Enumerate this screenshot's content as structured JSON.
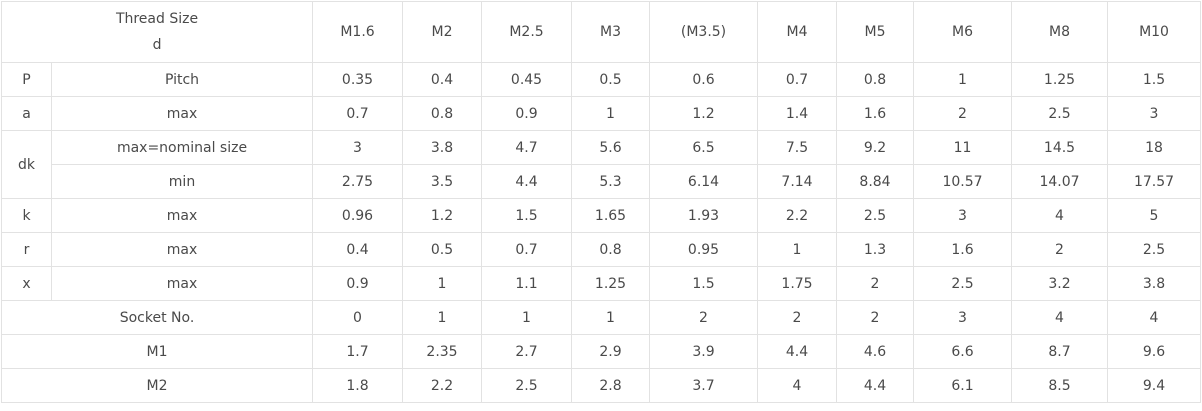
{
  "table": {
    "header": {
      "title_line1": "Thread Size",
      "title_line2": "d",
      "sizes": [
        "M1.6",
        "M2",
        "M2.5",
        "M3",
        "(M3.5)",
        "M4",
        "M5",
        "M6",
        "M8",
        "M10"
      ]
    },
    "rows": [
      {
        "symbol": "P",
        "label": "Pitch",
        "values": [
          "0.35",
          "0.4",
          "0.45",
          "0.5",
          "0.6",
          "0.7",
          "0.8",
          "1",
          "1.25",
          "1.5"
        ]
      },
      {
        "symbol": "a",
        "label": "max",
        "values": [
          "0.7",
          "0.8",
          "0.9",
          "1",
          "1.2",
          "1.4",
          "1.6",
          "2",
          "2.5",
          "3"
        ]
      },
      {
        "symbol": "dk",
        "label": "max=nominal size",
        "values": [
          "3",
          "3.8",
          "4.7",
          "5.6",
          "6.5",
          "7.5",
          "9.2",
          "11",
          "14.5",
          "18"
        ]
      },
      {
        "symbol": "",
        "label": "min",
        "values": [
          "2.75",
          "3.5",
          "4.4",
          "5.3",
          "6.14",
          "7.14",
          "8.84",
          "10.57",
          "14.07",
          "17.57"
        ]
      },
      {
        "symbol": "k",
        "label": "max",
        "values": [
          "0.96",
          "1.2",
          "1.5",
          "1.65",
          "1.93",
          "2.2",
          "2.5",
          "3",
          "4",
          "5"
        ]
      },
      {
        "symbol": "r",
        "label": "max",
        "values": [
          "0.4",
          "0.5",
          "0.7",
          "0.8",
          "0.95",
          "1",
          "1.3",
          "1.6",
          "2",
          "2.5"
        ]
      },
      {
        "symbol": "x",
        "label": "max",
        "values": [
          "0.9",
          "1",
          "1.1",
          "1.25",
          "1.5",
          "1.75",
          "2",
          "2.5",
          "3.2",
          "3.8"
        ]
      },
      {
        "symbol": "",
        "label": "Socket No.",
        "values": [
          "0",
          "1",
          "1",
          "1",
          "2",
          "2",
          "2",
          "3",
          "4",
          "4"
        ]
      },
      {
        "symbol": "",
        "label": "M1",
        "values": [
          "1.7",
          "2.35",
          "2.7",
          "2.9",
          "3.9",
          "4.4",
          "4.6",
          "6.6",
          "8.7",
          "9.6"
        ]
      },
      {
        "symbol": "",
        "label": "M2",
        "values": [
          "1.8",
          "2.2",
          "2.5",
          "2.8",
          "3.7",
          "4",
          "4.4",
          "6.1",
          "8.5",
          "9.4"
        ]
      }
    ]
  }
}
